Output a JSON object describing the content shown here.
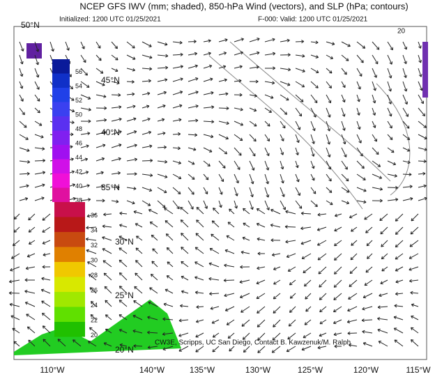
{
  "header": {
    "title": "NCEP GFS IWV (mm; shaded), 850-hPa Wind (vectors), and SLP (hPa; contours)",
    "initialized": "Initialized: 1200 UTC 01/25/2021",
    "valid": "F-000: Valid: 1200 UTC 01/25/2021"
  },
  "map": {
    "lat_labels": [
      "50°N",
      "45°N",
      "40°N",
      "35°N",
      "30°N",
      "25°N",
      "20°N"
    ],
    "lon_labels": [
      "110°W",
      "140°W",
      "135°W",
      "130°W",
      "125°W",
      "120°W",
      "115°W"
    ],
    "contour_label": "20",
    "credit": "CW3E, Scripps, UC San Diego, Contact B. Kawzenuk/M. Ralph"
  },
  "colorbar": {
    "labels": [
      56,
      54,
      52,
      50,
      48,
      46,
      44,
      42,
      40,
      38,
      36,
      34,
      32,
      30,
      28,
      26,
      24,
      22,
      20
    ],
    "colors": [
      "#0a1a9a",
      "#1030c8",
      "#2040e8",
      "#3a40f0",
      "#5a30f0",
      "#8020f0",
      "#a010f0",
      "#d010e8",
      "#f010d8",
      "#e010a0",
      "#c8104a",
      "#b81818",
      "#c84a10",
      "#e08000",
      "#f0c800",
      "#d8e800",
      "#a0e800",
      "#60e000",
      "#20c000"
    ]
  }
}
